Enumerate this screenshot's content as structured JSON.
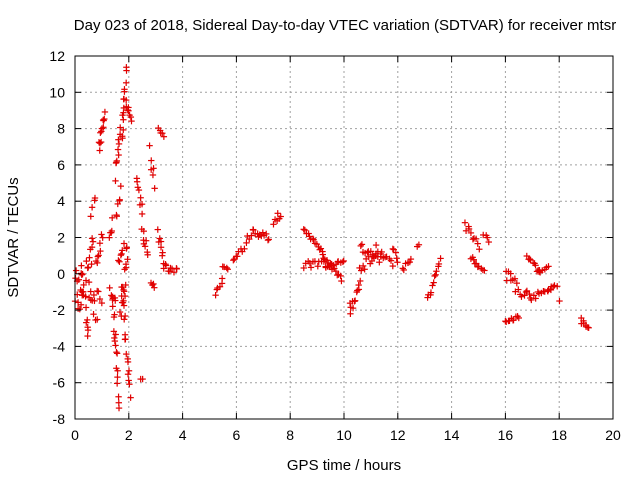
{
  "chart_data": {
    "type": "scatter",
    "title": "Day 023 of 2018, Sidereal Day-to-day VTEC variation (SDTVAR) for receiver mtsr",
    "xlabel": "GPS time / hours",
    "ylabel": "SDTVAR / TECUs",
    "xlim": [
      0,
      20
    ],
    "ylim": [
      -8,
      12
    ],
    "xticks": [
      "0",
      "2",
      "4",
      "6",
      "8",
      "10",
      "12",
      "14",
      "16",
      "18",
      "20"
    ],
    "yticks": [
      "-8",
      "-6",
      "-4",
      "-2",
      "0",
      "2",
      "4",
      "6",
      "8",
      "10",
      "12"
    ],
    "grid": true,
    "marker": "+",
    "color": "#e00000",
    "segments": [
      {
        "x0": 0.0,
        "x1": 0.3,
        "y0": -0.5,
        "y1": -1.8,
        "n": 14,
        "jitter": 1.0
      },
      {
        "x0": 0.2,
        "x1": 0.5,
        "y0": 0.4,
        "y1": -3.5,
        "n": 14,
        "jitter": 0.6
      },
      {
        "x0": 0.4,
        "x1": 0.7,
        "y0": 0.2,
        "y1": 1.6,
        "n": 10,
        "jitter": 0.6
      },
      {
        "x0": 0.5,
        "x1": 0.8,
        "y0": -0.6,
        "y1": -2.2,
        "n": 10,
        "jitter": 0.8
      },
      {
        "x0": 0.6,
        "x1": 0.75,
        "y0": 3.0,
        "y1": 4.0,
        "n": 4,
        "jitter": 0.4
      },
      {
        "x0": 0.8,
        "x1": 1.0,
        "y0": 0.5,
        "y1": 2.0,
        "n": 8,
        "jitter": 0.4
      },
      {
        "x0": 0.85,
        "x1": 0.98,
        "y0": -1.0,
        "y1": -1.8,
        "n": 4,
        "jitter": 0.3
      },
      {
        "x0": 0.9,
        "x1": 1.1,
        "y0": 7.0,
        "y1": 8.8,
        "n": 12,
        "jitter": 0.3
      },
      {
        "x0": 1.3,
        "x1": 1.4,
        "y0": 1.8,
        "y1": 2.8,
        "n": 5,
        "jitter": 0.3
      },
      {
        "x0": 1.3,
        "x1": 1.5,
        "y0": -0.5,
        "y1": -1.8,
        "n": 6,
        "jitter": 0.5
      },
      {
        "x0": 1.4,
        "x1": 1.65,
        "y0": -1.5,
        "y1": -7.0,
        "n": 18,
        "jitter": 0.5
      },
      {
        "x0": 1.5,
        "x1": 1.7,
        "y0": 5.5,
        "y1": 7.8,
        "n": 10,
        "jitter": 0.4
      },
      {
        "x0": 1.55,
        "x1": 1.7,
        "y0": 3.0,
        "y1": 4.5,
        "n": 6,
        "jitter": 0.4
      },
      {
        "x0": 1.6,
        "x1": 1.8,
        "y0": 0.5,
        "y1": 1.7,
        "n": 6,
        "jitter": 0.3
      },
      {
        "x0": 1.7,
        "x1": 1.95,
        "y0": -2.0,
        "y1": 1.0,
        "n": 18,
        "jitter": 1.0
      },
      {
        "x0": 1.75,
        "x1": 1.9,
        "y0": 7.5,
        "y1": 11.3,
        "n": 14,
        "jitter": 0.4
      },
      {
        "x0": 1.8,
        "x1": 2.05,
        "y0": -2.0,
        "y1": -6.5,
        "n": 14,
        "jitter": 0.5
      },
      {
        "x0": 1.9,
        "x1": 2.1,
        "y0": 9.5,
        "y1": 8.5,
        "n": 8,
        "jitter": 0.3
      },
      {
        "x0": 2.3,
        "x1": 2.5,
        "y0": 5.0,
        "y1": 3.5,
        "n": 8,
        "jitter": 0.3
      },
      {
        "x0": 2.5,
        "x1": 2.7,
        "y0": 2.5,
        "y1": 1.2,
        "n": 8,
        "jitter": 0.3
      },
      {
        "x0": 2.45,
        "x1": 2.5,
        "y0": -5.8,
        "y1": -5.8,
        "n": 2,
        "jitter": 0.0
      },
      {
        "x0": 2.8,
        "x1": 2.95,
        "y0": 6.8,
        "y1": 4.8,
        "n": 6,
        "jitter": 0.3
      },
      {
        "x0": 2.8,
        "x1": 2.95,
        "y0": -0.5,
        "y1": -0.7,
        "n": 4,
        "jitter": 0.1
      },
      {
        "x0": 3.1,
        "x1": 3.3,
        "y0": 8.0,
        "y1": 7.6,
        "n": 5,
        "jitter": 0.1
      },
      {
        "x0": 3.1,
        "x1": 3.3,
        "y0": 2.2,
        "y1": 0.8,
        "n": 8,
        "jitter": 0.3
      },
      {
        "x0": 3.3,
        "x1": 3.8,
        "y0": 0.4,
        "y1": 0.2,
        "n": 10,
        "jitter": 0.2
      },
      {
        "x0": 5.2,
        "x1": 5.5,
        "y0": -1.1,
        "y1": -0.3,
        "n": 6,
        "jitter": 0.1
      },
      {
        "x0": 5.5,
        "x1": 5.7,
        "y0": 0.4,
        "y1": 0.3,
        "n": 4,
        "jitter": 0.1
      },
      {
        "x0": 5.9,
        "x1": 6.2,
        "y0": 0.6,
        "y1": 1.3,
        "n": 7,
        "jitter": 0.2
      },
      {
        "x0": 6.3,
        "x1": 6.6,
        "y0": 1.5,
        "y1": 2.5,
        "n": 6,
        "jitter": 0.2
      },
      {
        "x0": 6.6,
        "x1": 7.2,
        "y0": 2.3,
        "y1": 2.0,
        "n": 12,
        "jitter": 0.2
      },
      {
        "x0": 7.4,
        "x1": 7.65,
        "y0": 2.9,
        "y1": 3.3,
        "n": 6,
        "jitter": 0.2
      },
      {
        "x0": 8.5,
        "x1": 9.2,
        "y0": 2.5,
        "y1": 1.2,
        "n": 14,
        "jitter": 0.1
      },
      {
        "x0": 8.5,
        "x1": 9.3,
        "y0": 0.5,
        "y1": 0.5,
        "n": 12,
        "jitter": 0.2
      },
      {
        "x0": 9.2,
        "x1": 9.9,
        "y0": 1.0,
        "y1": -0.3,
        "n": 14,
        "jitter": 0.1
      },
      {
        "x0": 9.3,
        "x1": 10.0,
        "y0": 0.3,
        "y1": 0.8,
        "n": 12,
        "jitter": 0.1
      },
      {
        "x0": 10.2,
        "x1": 10.6,
        "y0": -2.0,
        "y1": -0.5,
        "n": 12,
        "jitter": 0.4
      },
      {
        "x0": 10.6,
        "x1": 11.4,
        "y0": 0.3,
        "y1": 1.5,
        "n": 14,
        "jitter": 0.4
      },
      {
        "x0": 10.6,
        "x1": 11.3,
        "y0": 1.5,
        "y1": 0.8,
        "n": 12,
        "jitter": 0.2
      },
      {
        "x0": 11.4,
        "x1": 11.8,
        "y0": 1.1,
        "y1": 0.5,
        "n": 7,
        "jitter": 0.2
      },
      {
        "x0": 11.8,
        "x1": 12.0,
        "y0": 1.3,
        "y1": 0.8,
        "n": 5,
        "jitter": 0.2
      },
      {
        "x0": 12.2,
        "x1": 12.5,
        "y0": 0.2,
        "y1": 0.9,
        "n": 7,
        "jitter": 0.2
      },
      {
        "x0": 12.7,
        "x1": 12.8,
        "y0": 1.5,
        "y1": 1.6,
        "n": 2,
        "jitter": 0.0
      },
      {
        "x0": 13.1,
        "x1": 13.6,
        "y0": -1.5,
        "y1": 0.9,
        "n": 12,
        "jitter": 0.2
      },
      {
        "x0": 14.5,
        "x1": 15.0,
        "y0": 2.7,
        "y1": 1.5,
        "n": 10,
        "jitter": 0.2
      },
      {
        "x0": 14.7,
        "x1": 15.2,
        "y0": 0.9,
        "y1": 0.1,
        "n": 10,
        "jitter": 0.1
      },
      {
        "x0": 15.2,
        "x1": 15.4,
        "y0": 2.2,
        "y1": 1.8,
        "n": 4,
        "jitter": 0.1
      },
      {
        "x0": 16.0,
        "x1": 16.4,
        "y0": 0.0,
        "y1": -0.5,
        "n": 8,
        "jitter": 0.3
      },
      {
        "x0": 16.0,
        "x1": 16.5,
        "y0": -2.6,
        "y1": -2.4,
        "n": 10,
        "jitter": 0.1
      },
      {
        "x0": 16.4,
        "x1": 16.9,
        "y0": -0.8,
        "y1": -1.2,
        "n": 8,
        "jitter": 0.3
      },
      {
        "x0": 16.8,
        "x1": 17.3,
        "y0": 1.0,
        "y1": 0.1,
        "n": 10,
        "jitter": 0.1
      },
      {
        "x0": 16.9,
        "x1": 17.7,
        "y0": -1.4,
        "y1": -0.8,
        "n": 12,
        "jitter": 0.2
      },
      {
        "x0": 17.2,
        "x1": 17.6,
        "y0": 0.2,
        "y1": 0.4,
        "n": 6,
        "jitter": 0.1
      },
      {
        "x0": 17.6,
        "x1": 17.9,
        "y0": -0.9,
        "y1": -0.6,
        "n": 6,
        "jitter": 0.1
      },
      {
        "x0": 18.0,
        "x1": 18.0,
        "y0": -1.5,
        "y1": -1.5,
        "n": 1,
        "jitter": 0.0
      },
      {
        "x0": 18.8,
        "x1": 19.1,
        "y0": -2.6,
        "y1": -3.0,
        "n": 8,
        "jitter": 0.2
      }
    ]
  }
}
